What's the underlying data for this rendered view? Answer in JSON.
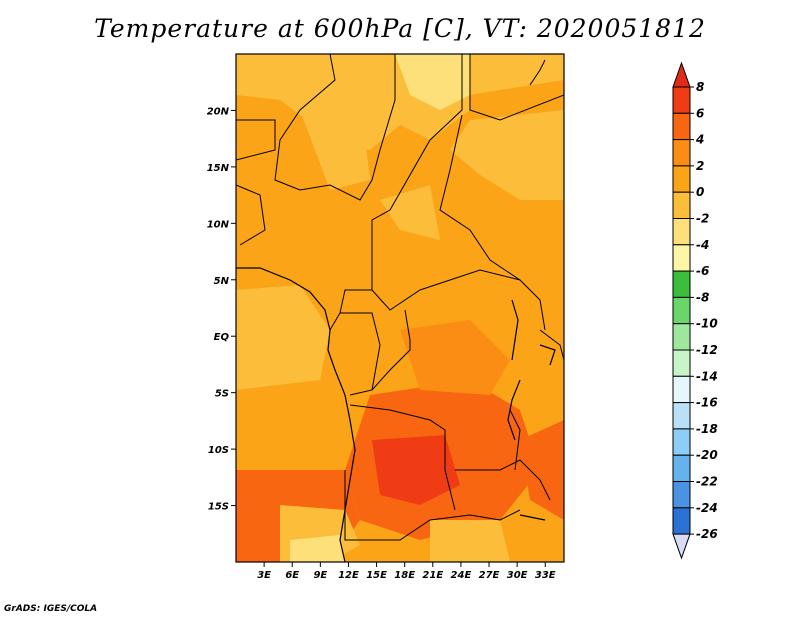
{
  "title": "Temperature at 600hPa [C], VT: 2020051812",
  "credit": "GrADS: IGES/COLA",
  "map": {
    "variable": "Temperature at 600hPa",
    "units": "C",
    "valid_time": "2020051812",
    "lon_labels": [
      "3E",
      "6E",
      "9E",
      "12E",
      "15E",
      "18E",
      "21E",
      "24E",
      "27E",
      "30E",
      "33E"
    ],
    "lat_labels": [
      "20N",
      "15N",
      "10N",
      "5N",
      "EQ",
      "5S",
      "10S",
      "15S"
    ],
    "lon_range": [
      0,
      35
    ],
    "lat_range": [
      -20,
      25
    ]
  },
  "colorbar": {
    "levels": [
      "8",
      "6",
      "4",
      "2",
      "0",
      "-2",
      "-4",
      "-6",
      "-8",
      "-10",
      "-12",
      "-14",
      "-16",
      "-18",
      "-20",
      "-22",
      "-24",
      "-26"
    ],
    "colors": [
      "#f03c15",
      "#f86612",
      "#fb8c14",
      "#fba418",
      "#fbbd3a",
      "#fde07a",
      "#fdf6a6",
      "#3dbd3d",
      "#6ad66a",
      "#9ee89e",
      "#c8f5c8",
      "#e6f7fb",
      "#b8e1f7",
      "#8ecdf5",
      "#66b2ec",
      "#4a93e2",
      "#2c71d4",
      "#1a52c0",
      "#133596",
      "#0b1a6b"
    ],
    "top_arrow": "#e02a1a",
    "bottom_arrow": "#d8dcf4"
  }
}
